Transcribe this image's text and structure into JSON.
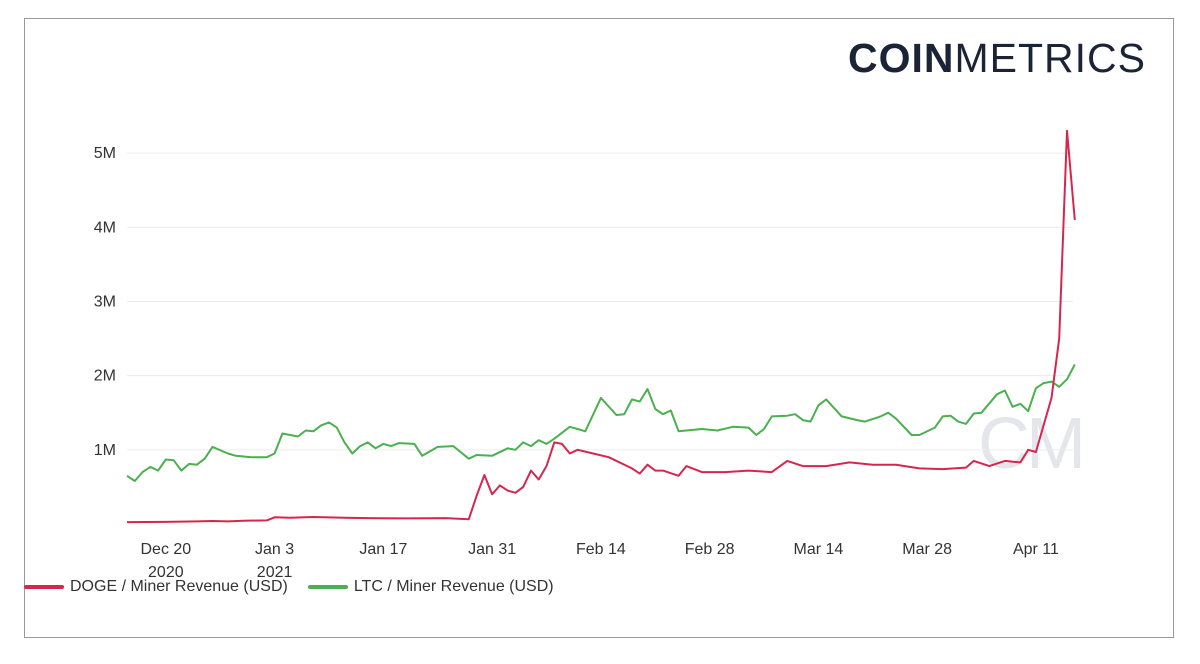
{
  "logo": {
    "bold": "COIN",
    "light": "METRICS"
  },
  "watermark": "CM",
  "chart_data": {
    "type": "line",
    "title": "",
    "xlabel": "",
    "ylabel": "",
    "x_start": "2020-12-15",
    "x_end": "2021-04-15",
    "ylim": [
      0,
      5500000
    ],
    "y_ticks": [
      {
        "value": 1000000,
        "label": "1M"
      },
      {
        "value": 2000000,
        "label": "2M"
      },
      {
        "value": 3000000,
        "label": "3M"
      },
      {
        "value": 4000000,
        "label": "4M"
      },
      {
        "value": 5000000,
        "label": "5M"
      }
    ],
    "x_ticks": [
      {
        "date": "2020-12-20",
        "label": "Dec 20",
        "sublabel": "2020"
      },
      {
        "date": "2021-01-03",
        "label": "Jan 3",
        "sublabel": "2021"
      },
      {
        "date": "2021-01-17",
        "label": "Jan 17",
        "sublabel": ""
      },
      {
        "date": "2021-01-31",
        "label": "Jan 31",
        "sublabel": ""
      },
      {
        "date": "2021-02-14",
        "label": "Feb 14",
        "sublabel": ""
      },
      {
        "date": "2021-02-28",
        "label": "Feb 28",
        "sublabel": ""
      },
      {
        "date": "2021-03-14",
        "label": "Mar 14",
        "sublabel": ""
      },
      {
        "date": "2021-03-28",
        "label": "Mar 28",
        "sublabel": ""
      },
      {
        "date": "2021-04-11",
        "label": "Apr 11",
        "sublabel": ""
      }
    ],
    "grid": true,
    "legend_position": "bottom-left",
    "series": [
      {
        "name": "DOGE / Miner Revenue (USD)",
        "color": "#d6264f",
        "points": [
          [
            "2020-12-15",
            25000
          ],
          [
            "2020-12-20",
            28000
          ],
          [
            "2020-12-24",
            35000
          ],
          [
            "2020-12-26",
            40000
          ],
          [
            "2020-12-28",
            35000
          ],
          [
            "2020-12-30",
            45000
          ],
          [
            "2021-01-02",
            48000
          ],
          [
            "2021-01-03",
            90000
          ],
          [
            "2021-01-05",
            85000
          ],
          [
            "2021-01-08",
            95000
          ],
          [
            "2021-01-12",
            85000
          ],
          [
            "2021-01-15",
            80000
          ],
          [
            "2021-01-20",
            75000
          ],
          [
            "2021-01-25",
            80000
          ],
          [
            "2021-01-28",
            65000
          ],
          [
            "2021-01-29",
            380000
          ],
          [
            "2021-01-30",
            660000
          ],
          [
            "2021-01-31",
            400000
          ],
          [
            "2021-02-01",
            520000
          ],
          [
            "2021-02-02",
            450000
          ],
          [
            "2021-02-03",
            420000
          ],
          [
            "2021-02-04",
            500000
          ],
          [
            "2021-02-05",
            720000
          ],
          [
            "2021-02-06",
            600000
          ],
          [
            "2021-02-07",
            780000
          ],
          [
            "2021-02-08",
            1100000
          ],
          [
            "2021-02-09",
            1080000
          ],
          [
            "2021-02-10",
            950000
          ],
          [
            "2021-02-11",
            1000000
          ],
          [
            "2021-02-13",
            950000
          ],
          [
            "2021-02-15",
            900000
          ],
          [
            "2021-02-18",
            750000
          ],
          [
            "2021-02-19",
            680000
          ],
          [
            "2021-02-20",
            800000
          ],
          [
            "2021-02-21",
            720000
          ],
          [
            "2021-02-22",
            720000
          ],
          [
            "2021-02-24",
            650000
          ],
          [
            "2021-02-25",
            780000
          ],
          [
            "2021-02-27",
            700000
          ],
          [
            "2021-03-02",
            700000
          ],
          [
            "2021-03-05",
            720000
          ],
          [
            "2021-03-08",
            700000
          ],
          [
            "2021-03-10",
            850000
          ],
          [
            "2021-03-12",
            780000
          ],
          [
            "2021-03-15",
            780000
          ],
          [
            "2021-03-18",
            830000
          ],
          [
            "2021-03-21",
            800000
          ],
          [
            "2021-03-24",
            800000
          ],
          [
            "2021-03-27",
            750000
          ],
          [
            "2021-03-30",
            740000
          ],
          [
            "2021-04-02",
            760000
          ],
          [
            "2021-04-03",
            850000
          ],
          [
            "2021-04-05",
            780000
          ],
          [
            "2021-04-07",
            850000
          ],
          [
            "2021-04-09",
            830000
          ],
          [
            "2021-04-10",
            1000000
          ],
          [
            "2021-04-11",
            970000
          ],
          [
            "2021-04-13",
            1700000
          ],
          [
            "2021-04-14",
            2500000
          ],
          [
            "2021-04-15",
            5300000
          ],
          [
            "2021-04-16",
            4100000
          ]
        ]
      },
      {
        "name": "LTC / Miner Revenue (USD)",
        "color": "#4caf50",
        "points": [
          [
            "2020-12-15",
            650000
          ],
          [
            "2020-12-16",
            580000
          ],
          [
            "2020-12-17",
            700000
          ],
          [
            "2020-12-18",
            770000
          ],
          [
            "2020-12-19",
            720000
          ],
          [
            "2020-12-20",
            870000
          ],
          [
            "2020-12-21",
            860000
          ],
          [
            "2020-12-22",
            720000
          ],
          [
            "2020-12-23",
            810000
          ],
          [
            "2020-12-24",
            800000
          ],
          [
            "2020-12-25",
            880000
          ],
          [
            "2020-12-26",
            1040000
          ],
          [
            "2020-12-28",
            950000
          ],
          [
            "2020-12-29",
            920000
          ],
          [
            "2020-12-31",
            900000
          ],
          [
            "2021-01-02",
            900000
          ],
          [
            "2021-01-03",
            950000
          ],
          [
            "2021-01-04",
            1220000
          ],
          [
            "2021-01-06",
            1180000
          ],
          [
            "2021-01-07",
            1260000
          ],
          [
            "2021-01-08",
            1250000
          ],
          [
            "2021-01-09",
            1330000
          ],
          [
            "2021-01-10",
            1370000
          ],
          [
            "2021-01-11",
            1300000
          ],
          [
            "2021-01-12",
            1100000
          ],
          [
            "2021-01-13",
            950000
          ],
          [
            "2021-01-14",
            1050000
          ],
          [
            "2021-01-15",
            1100000
          ],
          [
            "2021-01-16",
            1020000
          ],
          [
            "2021-01-17",
            1080000
          ],
          [
            "2021-01-18",
            1050000
          ],
          [
            "2021-01-19",
            1090000
          ],
          [
            "2021-01-21",
            1080000
          ],
          [
            "2021-01-22",
            920000
          ],
          [
            "2021-01-24",
            1040000
          ],
          [
            "2021-01-26",
            1050000
          ],
          [
            "2021-01-28",
            880000
          ],
          [
            "2021-01-29",
            930000
          ],
          [
            "2021-01-31",
            920000
          ],
          [
            "2021-02-02",
            1020000
          ],
          [
            "2021-02-03",
            1000000
          ],
          [
            "2021-02-04",
            1100000
          ],
          [
            "2021-02-05",
            1050000
          ],
          [
            "2021-02-06",
            1130000
          ],
          [
            "2021-02-07",
            1080000
          ],
          [
            "2021-02-08",
            1150000
          ],
          [
            "2021-02-10",
            1310000
          ],
          [
            "2021-02-11",
            1280000
          ],
          [
            "2021-02-12",
            1250000
          ],
          [
            "2021-02-14",
            1700000
          ],
          [
            "2021-02-16",
            1470000
          ],
          [
            "2021-02-17",
            1480000
          ],
          [
            "2021-02-18",
            1680000
          ],
          [
            "2021-02-19",
            1650000
          ],
          [
            "2021-02-20",
            1820000
          ],
          [
            "2021-02-21",
            1550000
          ],
          [
            "2021-02-22",
            1480000
          ],
          [
            "2021-02-23",
            1530000
          ],
          [
            "2021-02-24",
            1250000
          ],
          [
            "2021-02-25",
            1260000
          ],
          [
            "2021-02-27",
            1280000
          ],
          [
            "2021-03-01",
            1260000
          ],
          [
            "2021-03-03",
            1310000
          ],
          [
            "2021-03-05",
            1300000
          ],
          [
            "2021-03-06",
            1200000
          ],
          [
            "2021-03-07",
            1280000
          ],
          [
            "2021-03-08",
            1450000
          ],
          [
            "2021-03-10",
            1460000
          ],
          [
            "2021-03-11",
            1480000
          ],
          [
            "2021-03-12",
            1400000
          ],
          [
            "2021-03-13",
            1380000
          ],
          [
            "2021-03-14",
            1600000
          ],
          [
            "2021-03-15",
            1680000
          ],
          [
            "2021-03-17",
            1450000
          ],
          [
            "2021-03-19",
            1400000
          ],
          [
            "2021-03-20",
            1380000
          ],
          [
            "2021-03-22",
            1450000
          ],
          [
            "2021-03-23",
            1500000
          ],
          [
            "2021-03-24",
            1420000
          ],
          [
            "2021-03-26",
            1200000
          ],
          [
            "2021-03-27",
            1200000
          ],
          [
            "2021-03-29",
            1300000
          ],
          [
            "2021-03-30",
            1450000
          ],
          [
            "2021-03-31",
            1460000
          ],
          [
            "2021-04-01",
            1380000
          ],
          [
            "2021-04-02",
            1350000
          ],
          [
            "2021-04-03",
            1490000
          ],
          [
            "2021-04-04",
            1500000
          ],
          [
            "2021-04-06",
            1750000
          ],
          [
            "2021-04-07",
            1800000
          ],
          [
            "2021-04-08",
            1580000
          ],
          [
            "2021-04-09",
            1620000
          ],
          [
            "2021-04-10",
            1520000
          ],
          [
            "2021-04-11",
            1830000
          ],
          [
            "2021-04-12",
            1900000
          ],
          [
            "2021-04-13",
            1920000
          ],
          [
            "2021-04-14",
            1850000
          ],
          [
            "2021-04-15",
            1950000
          ],
          [
            "2021-04-16",
            2150000
          ]
        ]
      }
    ]
  }
}
